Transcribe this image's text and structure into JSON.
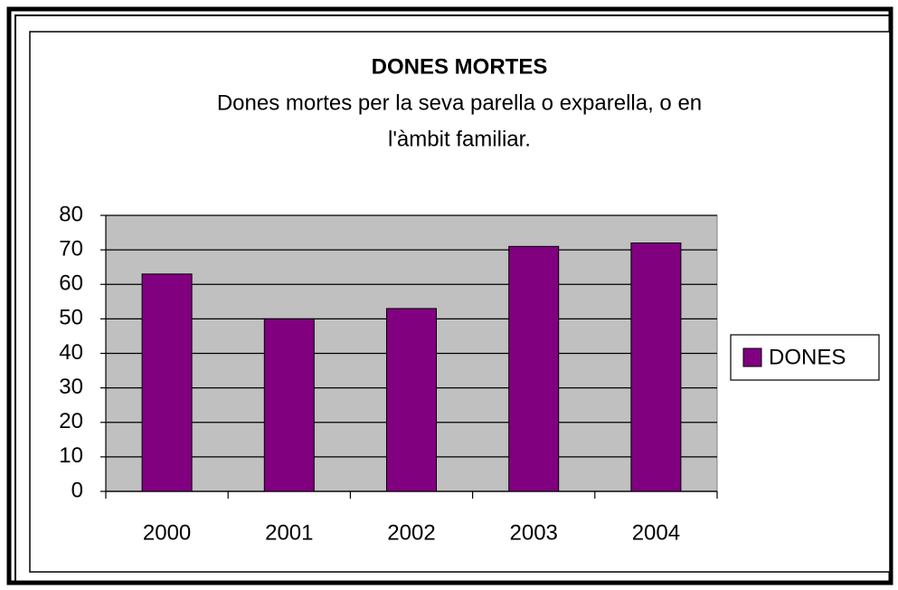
{
  "chart_data": {
    "type": "bar",
    "title": "DONES MORTES",
    "subtitle": [
      "Dones mortes per la seva parella o exparella, o en",
      "l'àmbit familiar."
    ],
    "categories": [
      "2000",
      "2001",
      "2002",
      "2003",
      "2004"
    ],
    "series": [
      {
        "name": "DONES",
        "color": "#800080",
        "values": [
          63,
          50,
          53,
          71,
          72
        ]
      }
    ],
    "ylim": [
      0,
      80
    ],
    "yticks": [
      0,
      10,
      20,
      30,
      40,
      50,
      60,
      70,
      80
    ],
    "grid": true,
    "legend": "right"
  }
}
